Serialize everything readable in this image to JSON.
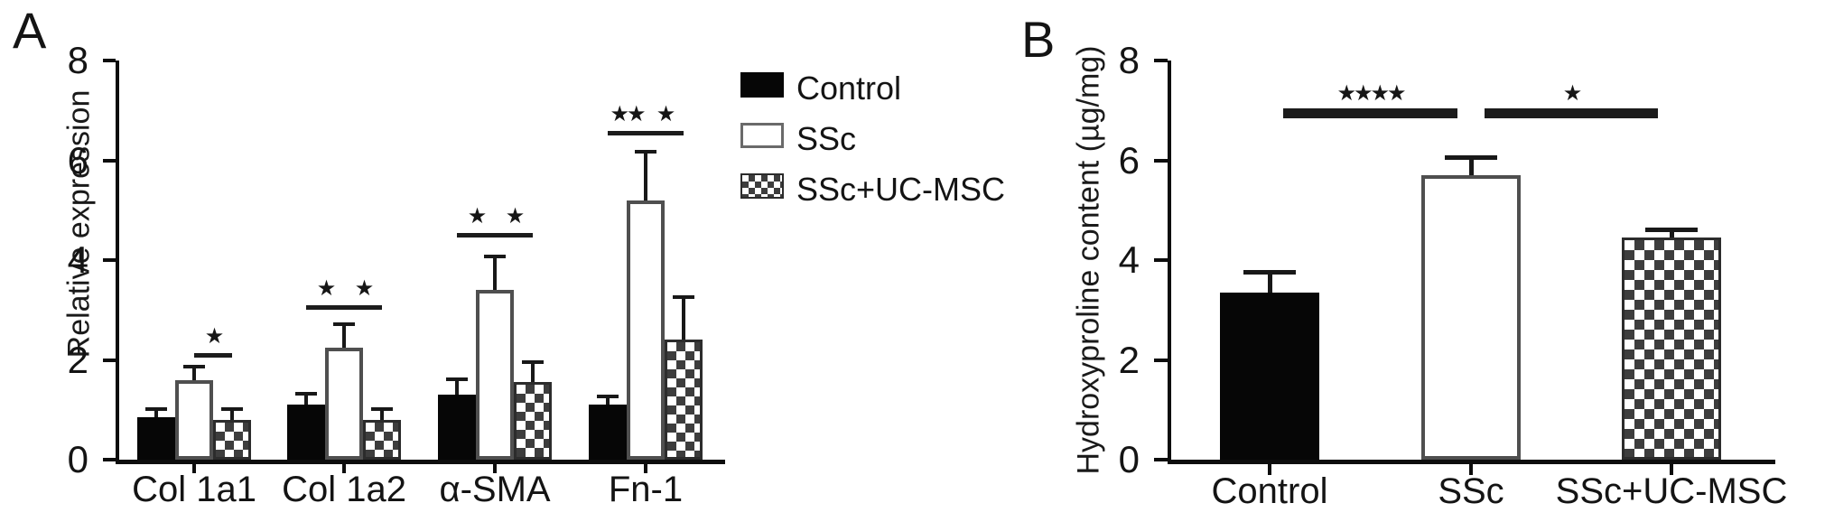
{
  "figure": {
    "background": "#ffffff",
    "ink_color": "#111111",
    "panels": [
      {
        "label": "A"
      },
      {
        "label": "B"
      }
    ]
  },
  "legend": {
    "items": [
      {
        "label": "Control",
        "swatch": "solid-black"
      },
      {
        "label": "SSc",
        "swatch": "white-outline"
      },
      {
        "label": "SSc+UC-MSC",
        "swatch": "checkerboard"
      }
    ]
  },
  "chart_data": [
    {
      "type": "bar",
      "panel": "A",
      "title": "",
      "xlabel": "",
      "ylabel": "Relative expression",
      "ylim": [
        0,
        8
      ],
      "yticks": [
        0,
        2,
        4,
        6,
        8
      ],
      "grid": false,
      "legend_position": "right-of-plot",
      "categories": [
        "Col 1a1",
        "Col 1a2",
        "α-SMA",
        "Fn-1"
      ],
      "series": [
        {
          "name": "Control",
          "style": "solid-black",
          "values": [
            0.85,
            1.1,
            1.3,
            1.1
          ],
          "errors": [
            0.2,
            0.25,
            0.35,
            0.2
          ]
        },
        {
          "name": "SSc",
          "style": "white-outline",
          "values": [
            1.6,
            2.25,
            3.4,
            5.2
          ],
          "errors": [
            0.3,
            0.5,
            0.7,
            1.0
          ]
        },
        {
          "name": "SSc+UC-MSC",
          "style": "checkerboard",
          "values": [
            0.8,
            0.8,
            1.55,
            2.4
          ],
          "errors": [
            0.25,
            0.25,
            0.45,
            0.9
          ]
        }
      ],
      "significance": [
        {
          "category": "Col 1a1",
          "between": [
            "SSc",
            "SSc+UC-MSC"
          ],
          "label": "*",
          "y": 2.05
        },
        {
          "category": "Col 1a2",
          "between": [
            "Control",
            "SSc"
          ],
          "label": "*",
          "y": 3.0
        },
        {
          "category": "Col 1a2",
          "between": [
            "SSc",
            "SSc+UC-MSC"
          ],
          "label": "*",
          "y": 3.0
        },
        {
          "category": "α-SMA",
          "between": [
            "Control",
            "SSc"
          ],
          "label": "*",
          "y": 4.45
        },
        {
          "category": "α-SMA",
          "between": [
            "SSc",
            "SSc+UC-MSC"
          ],
          "label": "*",
          "y": 4.45
        },
        {
          "category": "Fn-1",
          "between": [
            "Control",
            "SSc"
          ],
          "label": "**",
          "y": 6.5
        },
        {
          "category": "Fn-1",
          "between": [
            "SSc",
            "SSc+UC-MSC"
          ],
          "label": "*",
          "y": 6.5
        }
      ]
    },
    {
      "type": "bar",
      "panel": "B",
      "title": "",
      "xlabel": "",
      "ylabel": "Hydroxyproline content (µg/mg)",
      "ylim": [
        0,
        8
      ],
      "yticks": [
        0,
        2,
        4,
        6,
        8
      ],
      "grid": false,
      "categories": [
        "Control",
        "SSc",
        "SSc+UC-MSC"
      ],
      "series": [
        {
          "name": "Hydroxyproline content",
          "values": [
            3.35,
            5.7,
            4.45
          ],
          "errors": [
            0.45,
            0.4,
            0.2
          ],
          "styles": [
            "solid-black",
            "white-outline",
            "checkerboard"
          ]
        }
      ],
      "significance": [
        {
          "between": [
            "Control",
            "SSc"
          ],
          "label": "****",
          "y": 6.85
        },
        {
          "between": [
            "SSc",
            "SSc+UC-MSC"
          ],
          "label": "*",
          "y": 6.85
        }
      ]
    }
  ]
}
